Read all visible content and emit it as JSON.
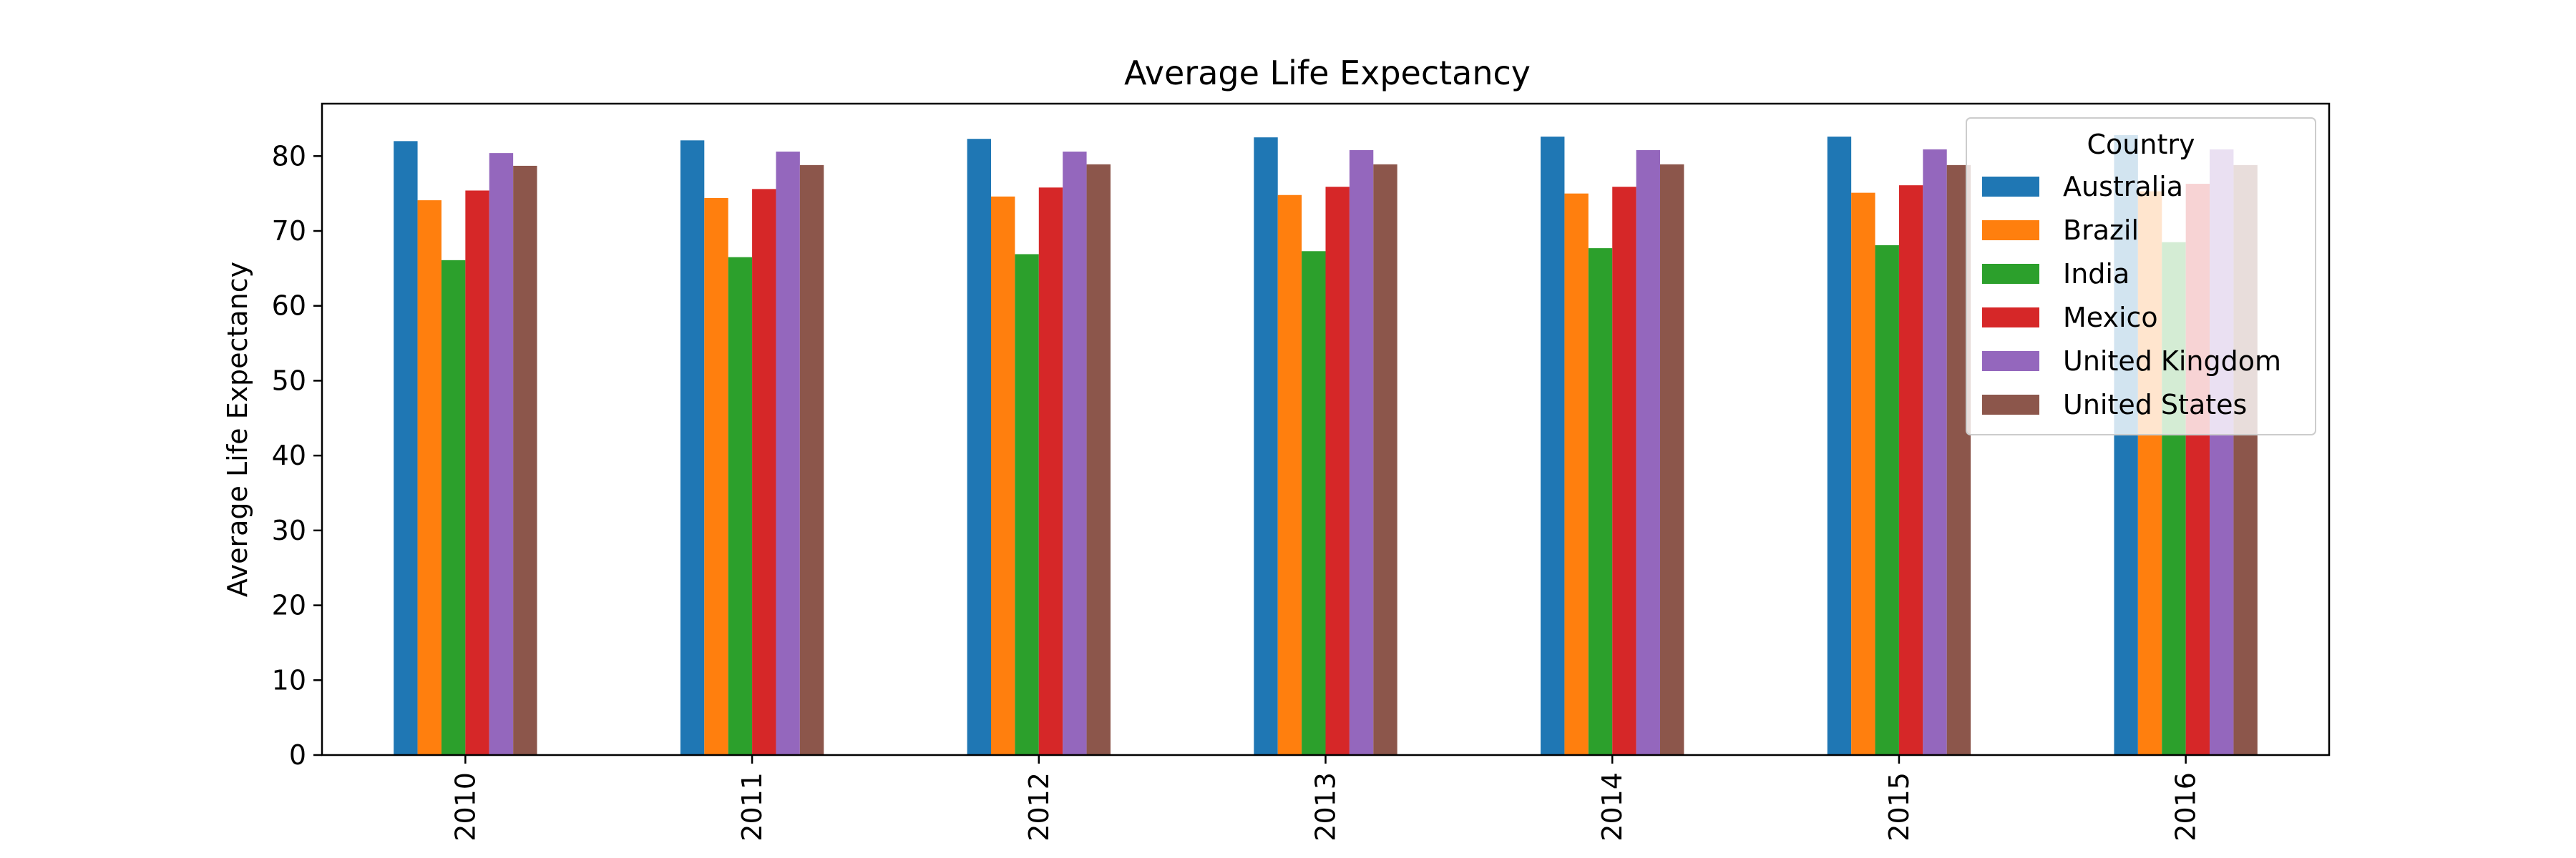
{
  "chart_data": {
    "type": "bar",
    "title": "Average Life Expectancy",
    "xlabel": "",
    "ylabel": "Average Life Expectancy",
    "categories": [
      "2010",
      "2011",
      "2012",
      "2013",
      "2014",
      "2015",
      "2016"
    ],
    "ylim": [
      0,
      87
    ],
    "yticks": [
      0,
      10,
      20,
      30,
      40,
      50,
      60,
      70,
      80
    ],
    "legend_title": "Country",
    "legend_position": "top-right",
    "grid": false,
    "series": [
      {
        "name": "Australia",
        "color": "#1f77b4",
        "values": [
          82.0,
          82.1,
          82.3,
          82.5,
          82.6,
          82.6,
          82.8
        ]
      },
      {
        "name": "Brazil",
        "color": "#ff7f0e",
        "values": [
          74.1,
          74.4,
          74.6,
          74.8,
          75.0,
          75.1,
          75.3
        ]
      },
      {
        "name": "India",
        "color": "#2ca02c",
        "values": [
          66.1,
          66.5,
          66.9,
          67.3,
          67.7,
          68.1,
          68.5
        ]
      },
      {
        "name": "Mexico",
        "color": "#d62728",
        "values": [
          75.4,
          75.6,
          75.8,
          75.9,
          75.9,
          76.1,
          76.3
        ]
      },
      {
        "name": "United Kingdom",
        "color": "#9467bd",
        "values": [
          80.4,
          80.6,
          80.6,
          80.8,
          80.8,
          80.9,
          80.9
        ]
      },
      {
        "name": "United States",
        "color": "#8c564b",
        "values": [
          78.7,
          78.8,
          78.9,
          78.9,
          78.9,
          78.8,
          78.8
        ]
      }
    ]
  }
}
